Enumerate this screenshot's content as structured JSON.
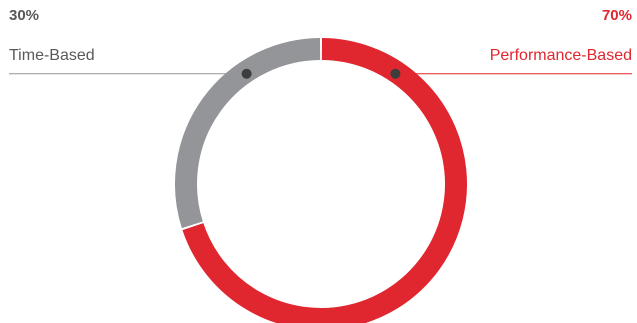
{
  "chart_data": {
    "type": "pie",
    "variant": "donut",
    "slices": [
      {
        "label": "Time-Based",
        "value": 30,
        "value_label": "30%",
        "color": "#939598"
      },
      {
        "label": "Performance-Based",
        "value": 70,
        "value_label": "70%",
        "color": "#e0262f"
      }
    ],
    "title": "",
    "legend_placement": "callouts (left and right)"
  }
}
